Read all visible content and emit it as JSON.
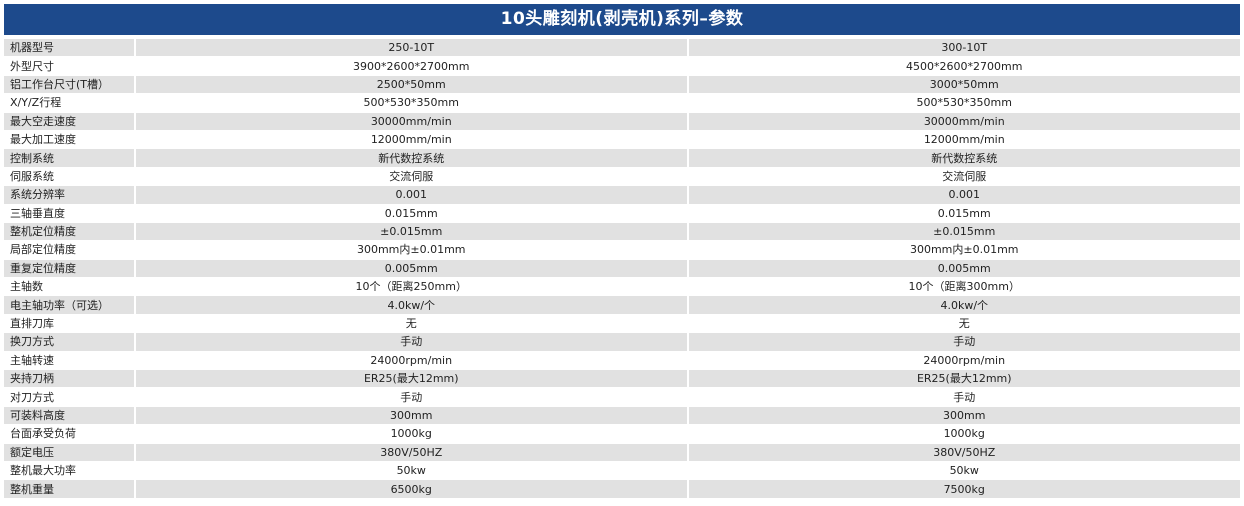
{
  "title": "10头雕刻机(剥壳机)系列–参数",
  "colors": {
    "header_bg": "#1d4a8c",
    "header_text": "#ffffff",
    "row_shade": "#e1e1e1"
  },
  "rows": [
    {
      "label": "机器型号",
      "a": "250-10T",
      "b": "300-10T"
    },
    {
      "label": "外型尺寸",
      "a": "3900*2600*2700mm",
      "b": "4500*2600*2700mm"
    },
    {
      "label": "铝工作台尺寸(T槽）",
      "a": "2500*50mm",
      "b": "3000*50mm"
    },
    {
      "label": "X/Y/Z行程",
      "a": "500*530*350mm",
      "b": "500*530*350mm"
    },
    {
      "label": "最大空走速度",
      "a": "30000mm/min",
      "b": "30000mm/min"
    },
    {
      "label": "最大加工速度",
      "a": "12000mm/min",
      "b": "12000mm/min"
    },
    {
      "label": "控制系统",
      "a": "新代数控系统",
      "b": "新代数控系统"
    },
    {
      "label": "伺服系统",
      "a": "交流伺服",
      "b": "交流伺服"
    },
    {
      "label": "系统分辨率",
      "a": "0.001",
      "b": "0.001"
    },
    {
      "label": "三轴垂直度",
      "a": "0.015mm",
      "b": "0.015mm"
    },
    {
      "label": "整机定位精度",
      "a": "±0.015mm",
      "b": "±0.015mm"
    },
    {
      "label": "局部定位精度",
      "a": "300mm内±0.01mm",
      "b": "300mm内±0.01mm"
    },
    {
      "label": "重复定位精度",
      "a": "0.005mm",
      "b": "0.005mm"
    },
    {
      "label": "主轴数",
      "a": "10个（距离250mm）",
      "b": "10个（距离300mm）"
    },
    {
      "label": "电主轴功率（可选）",
      "a": "4.0kw/个",
      "b": "4.0kw/个"
    },
    {
      "label": "直排刀库",
      "a": "无",
      "b": "无"
    },
    {
      "label": "换刀方式",
      "a": "手动",
      "b": "手动"
    },
    {
      "label": "主轴转速",
      "a": "24000rpm/min",
      "b": "24000rpm/min"
    },
    {
      "label": "夹持刀柄",
      "a": "ER25(最大12mm)",
      "b": "ER25(最大12mm)"
    },
    {
      "label": "对刀方式",
      "a": "手动",
      "b": "手动"
    },
    {
      "label": "可装料高度",
      "a": "300mm",
      "b": "300mm"
    },
    {
      "label": "台面承受负荷",
      "a": "1000kg",
      "b": "1000kg"
    },
    {
      "label": "额定电压",
      "a": "380V/50HZ",
      "b": "380V/50HZ"
    },
    {
      "label": "整机最大功率",
      "a": "50kw",
      "b": "50kw"
    },
    {
      "label": "整机重量",
      "a": "6500kg",
      "b": "7500kg"
    }
  ]
}
